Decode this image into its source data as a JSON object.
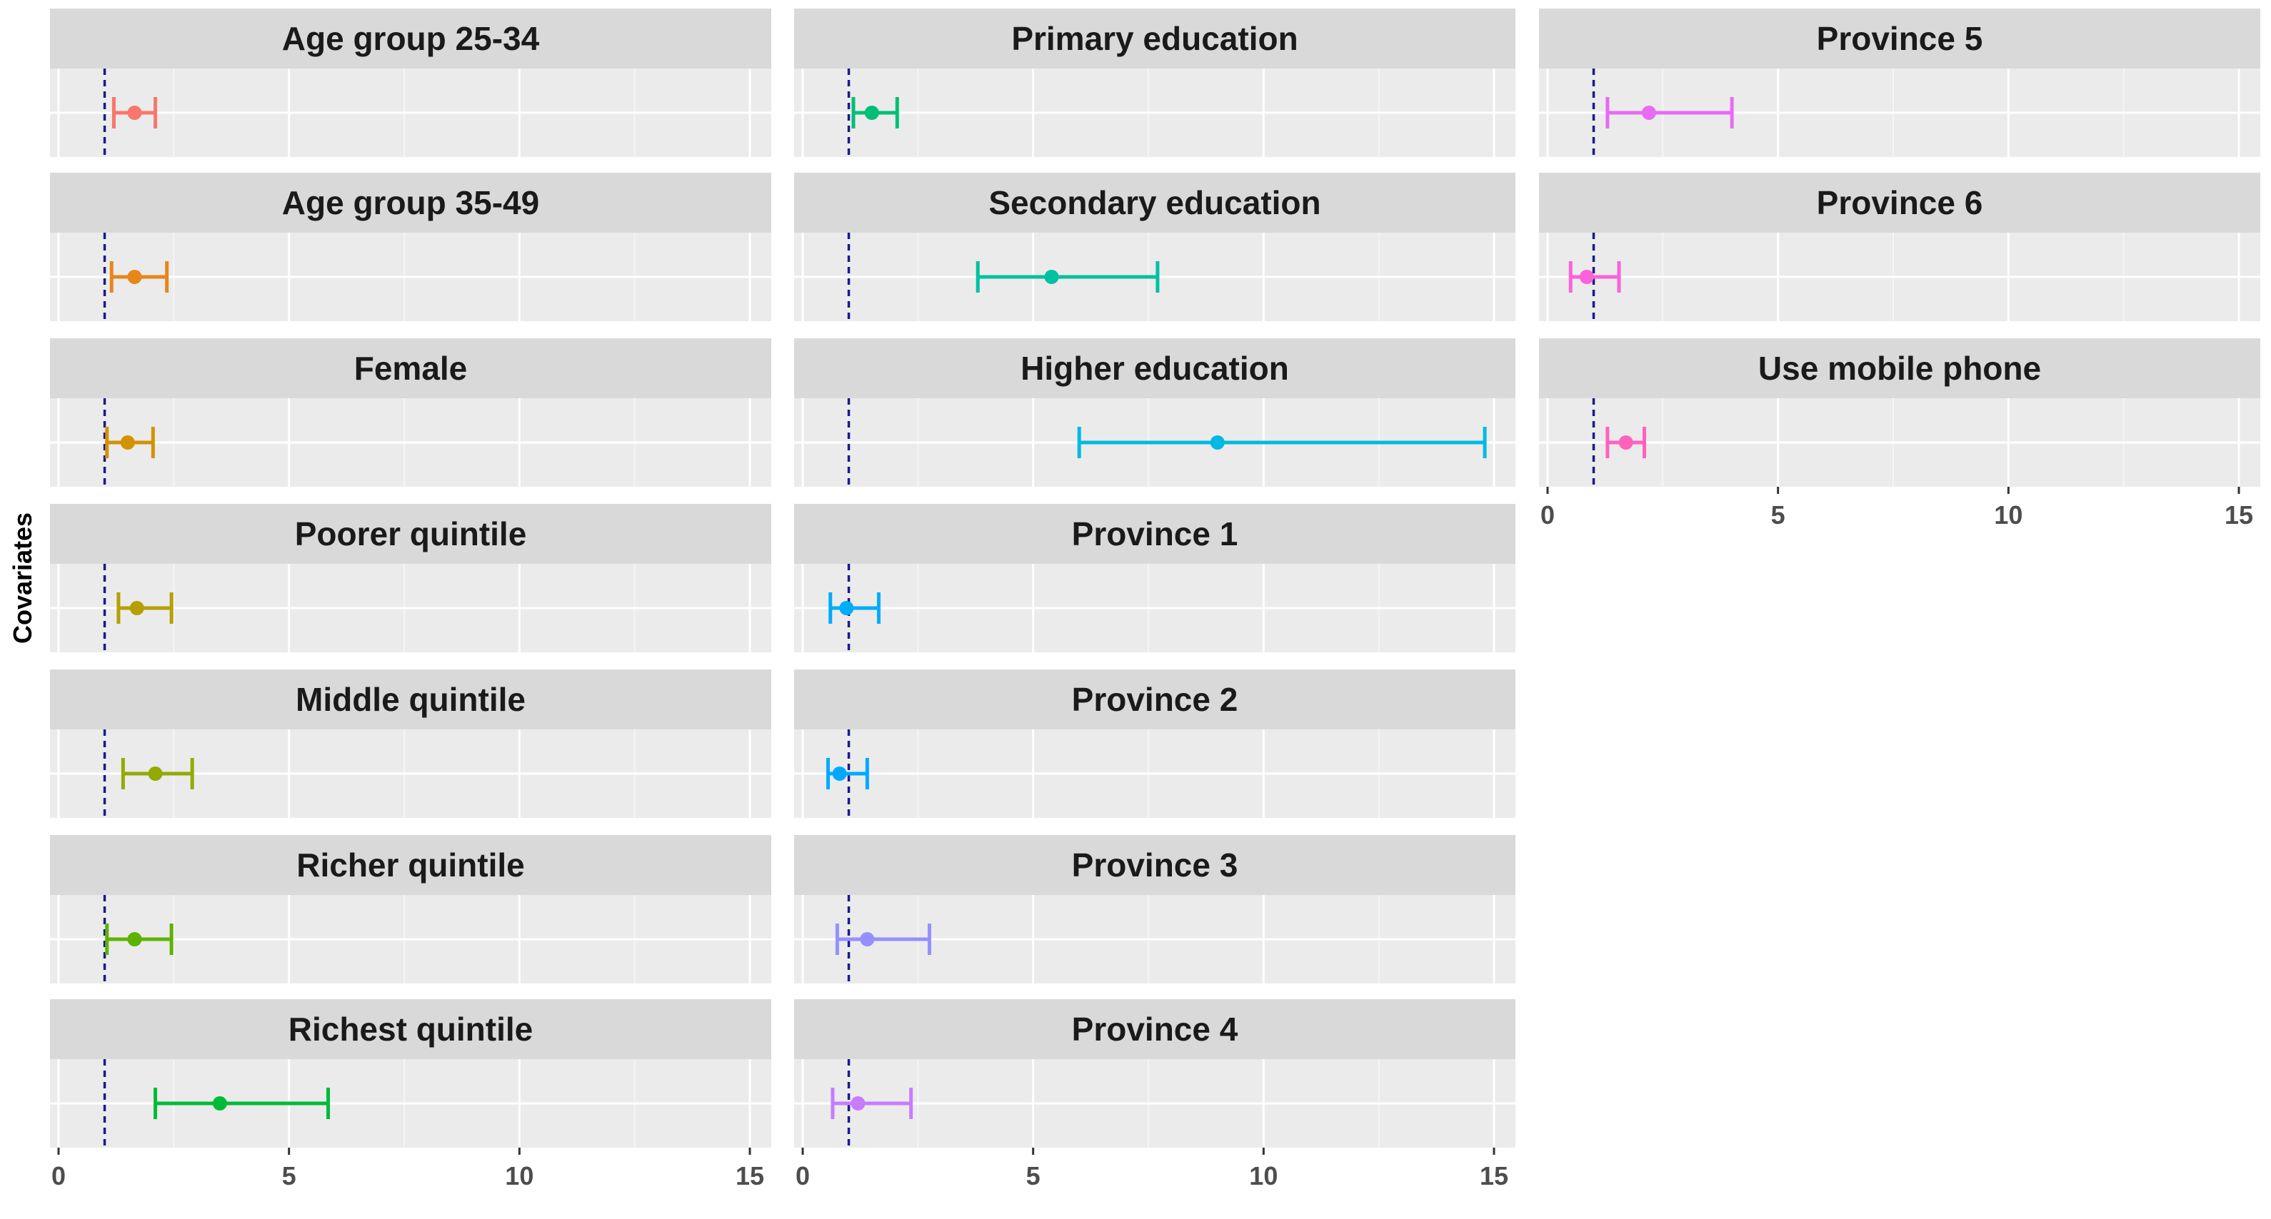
{
  "chart_data": {
    "type": "forest",
    "ylabel": "Covariates",
    "xlim": [
      0,
      15
    ],
    "x_ticks": [
      0,
      5,
      10,
      15
    ],
    "reference_line": 1,
    "reference_color": "#1a1a8c",
    "panels": [
      {
        "label": "Age group 25-34",
        "estimate": 1.65,
        "lower": 1.2,
        "upper": 2.1,
        "color": "#F8766D"
      },
      {
        "label": "Age group 35-49",
        "estimate": 1.65,
        "lower": 1.15,
        "upper": 2.35,
        "color": "#E7861B"
      },
      {
        "label": "Female",
        "estimate": 1.5,
        "lower": 1.05,
        "upper": 2.05,
        "color": "#D39200"
      },
      {
        "label": "Poorer quintile",
        "estimate": 1.7,
        "lower": 1.3,
        "upper": 2.45,
        "color": "#B79F00"
      },
      {
        "label": "Middle quintile",
        "estimate": 2.1,
        "lower": 1.4,
        "upper": 2.9,
        "color": "#93AA00"
      },
      {
        "label": "Richer quintile",
        "estimate": 1.65,
        "lower": 1.05,
        "upper": 2.45,
        "color": "#5EB300"
      },
      {
        "label": "Richest quintile",
        "estimate": 3.5,
        "lower": 2.1,
        "upper": 5.85,
        "color": "#00BA38"
      },
      {
        "label": "Primary education",
        "estimate": 1.5,
        "lower": 1.1,
        "upper": 2.05,
        "color": "#00BF74"
      },
      {
        "label": "Secondary education",
        "estimate": 5.4,
        "lower": 3.8,
        "upper": 7.7,
        "color": "#00C19F"
      },
      {
        "label": "Higher education",
        "estimate": 9.0,
        "lower": 6.0,
        "upper": 14.8,
        "color": "#00B9E3"
      },
      {
        "label": "Province 1",
        "estimate": 0.95,
        "lower": 0.6,
        "upper": 1.65,
        "color": "#00ADFA"
      },
      {
        "label": "Province 2",
        "estimate": 0.8,
        "lower": 0.55,
        "upper": 1.4,
        "color": "#00A9FF"
      },
      {
        "label": "Province 3",
        "estimate": 1.4,
        "lower": 0.75,
        "upper": 2.75,
        "color": "#9590FF"
      },
      {
        "label": "Province 4",
        "estimate": 1.2,
        "lower": 0.65,
        "upper": 2.35,
        "color": "#C77CFF"
      },
      {
        "label": "Province 5",
        "estimate": 2.2,
        "lower": 1.3,
        "upper": 4.0,
        "color": "#E76BF3"
      },
      {
        "label": "Province 6",
        "estimate": 0.85,
        "lower": 0.5,
        "upper": 1.55,
        "color": "#FA62DB"
      },
      {
        "label": "Use mobile phone",
        "estimate": 1.7,
        "lower": 1.3,
        "upper": 2.1,
        "color": "#FF62BC"
      }
    ]
  }
}
